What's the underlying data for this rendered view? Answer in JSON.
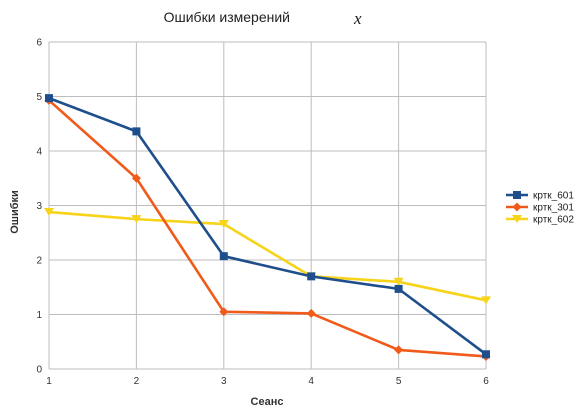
{
  "chart_data": {
    "type": "line",
    "title": "Ошибки измерений",
    "title_variable": "x",
    "xlabel": "Сеанс",
    "ylabel": "Ошибки",
    "x": [
      1,
      2,
      3,
      4,
      5,
      6
    ],
    "x_tick_labels": [
      "1",
      "2",
      "3",
      "4",
      "5",
      "6"
    ],
    "y_tick_labels": [
      "0",
      "1",
      "2",
      "3",
      "4",
      "5",
      "6"
    ],
    "xlim": [
      1,
      6
    ],
    "ylim": [
      0,
      6
    ],
    "grid": true,
    "legend_position": "right",
    "series": [
      {
        "name": "кртк_601",
        "color": "#1f4e8c",
        "marker": "square",
        "values": [
          4.97,
          4.36,
          2.07,
          1.7,
          1.47,
          0.27
        ]
      },
      {
        "name": "кртк_301",
        "color": "#f05a1a",
        "marker": "diamond",
        "values": [
          4.93,
          3.5,
          1.05,
          1.02,
          0.35,
          0.23
        ]
      },
      {
        "name": "кртк_602",
        "color": "#f7d31a",
        "marker": "triangle",
        "values": [
          2.88,
          2.75,
          2.66,
          1.7,
          1.6,
          1.26
        ]
      }
    ]
  }
}
